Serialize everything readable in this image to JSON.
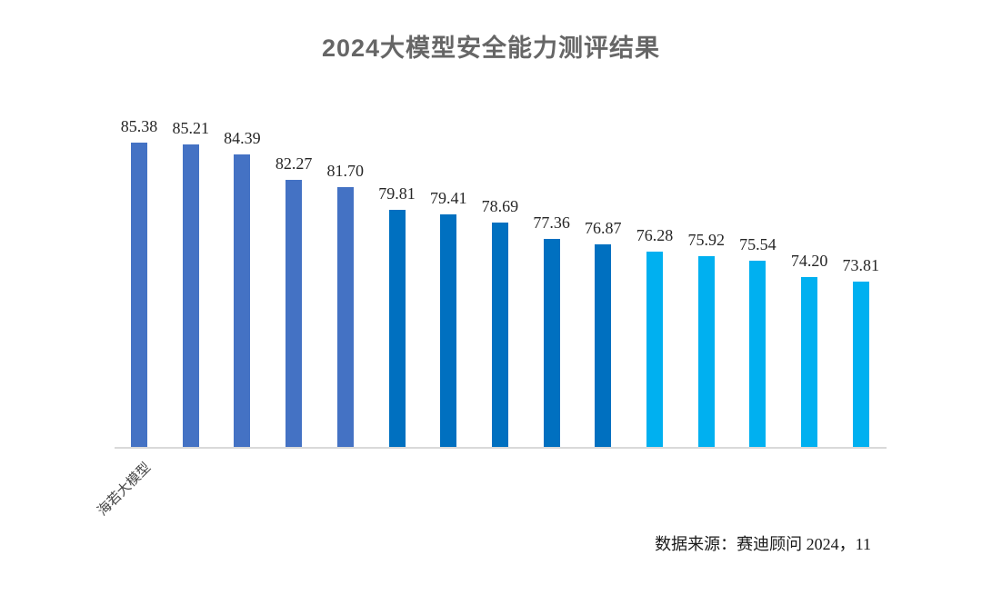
{
  "title": "2024大模型安全能力测评结果",
  "source_note": "数据来源：赛迪顾问 2024，11",
  "chart_data": {
    "type": "bar",
    "title": "2024大模型安全能力测评结果",
    "categories": [
      "海若大模型",
      "",
      "",
      "",
      "",
      "",
      "",
      "",
      "",
      "",
      "",
      "",
      "",
      "",
      ""
    ],
    "values": [
      85.38,
      85.21,
      84.39,
      82.27,
      81.7,
      79.81,
      79.41,
      78.69,
      77.36,
      76.87,
      76.28,
      75.92,
      75.54,
      74.2,
      73.81
    ],
    "bar_color_groups": [
      0,
      0,
      0,
      0,
      0,
      1,
      1,
      1,
      1,
      1,
      2,
      2,
      2,
      2,
      2
    ],
    "group_colors": [
      "#4472C4",
      "#0070C0",
      "#00B0F0"
    ],
    "value_label_color": "#262626",
    "axis_line_color": "#D9D9D9",
    "xlabel": "",
    "ylabel": "",
    "ylim": [
      60,
      90
    ],
    "grid": false,
    "legend": false,
    "category_label_rotation_deg": -45,
    "annotation_source": "数据来源：赛迪顾问 2024，11"
  }
}
